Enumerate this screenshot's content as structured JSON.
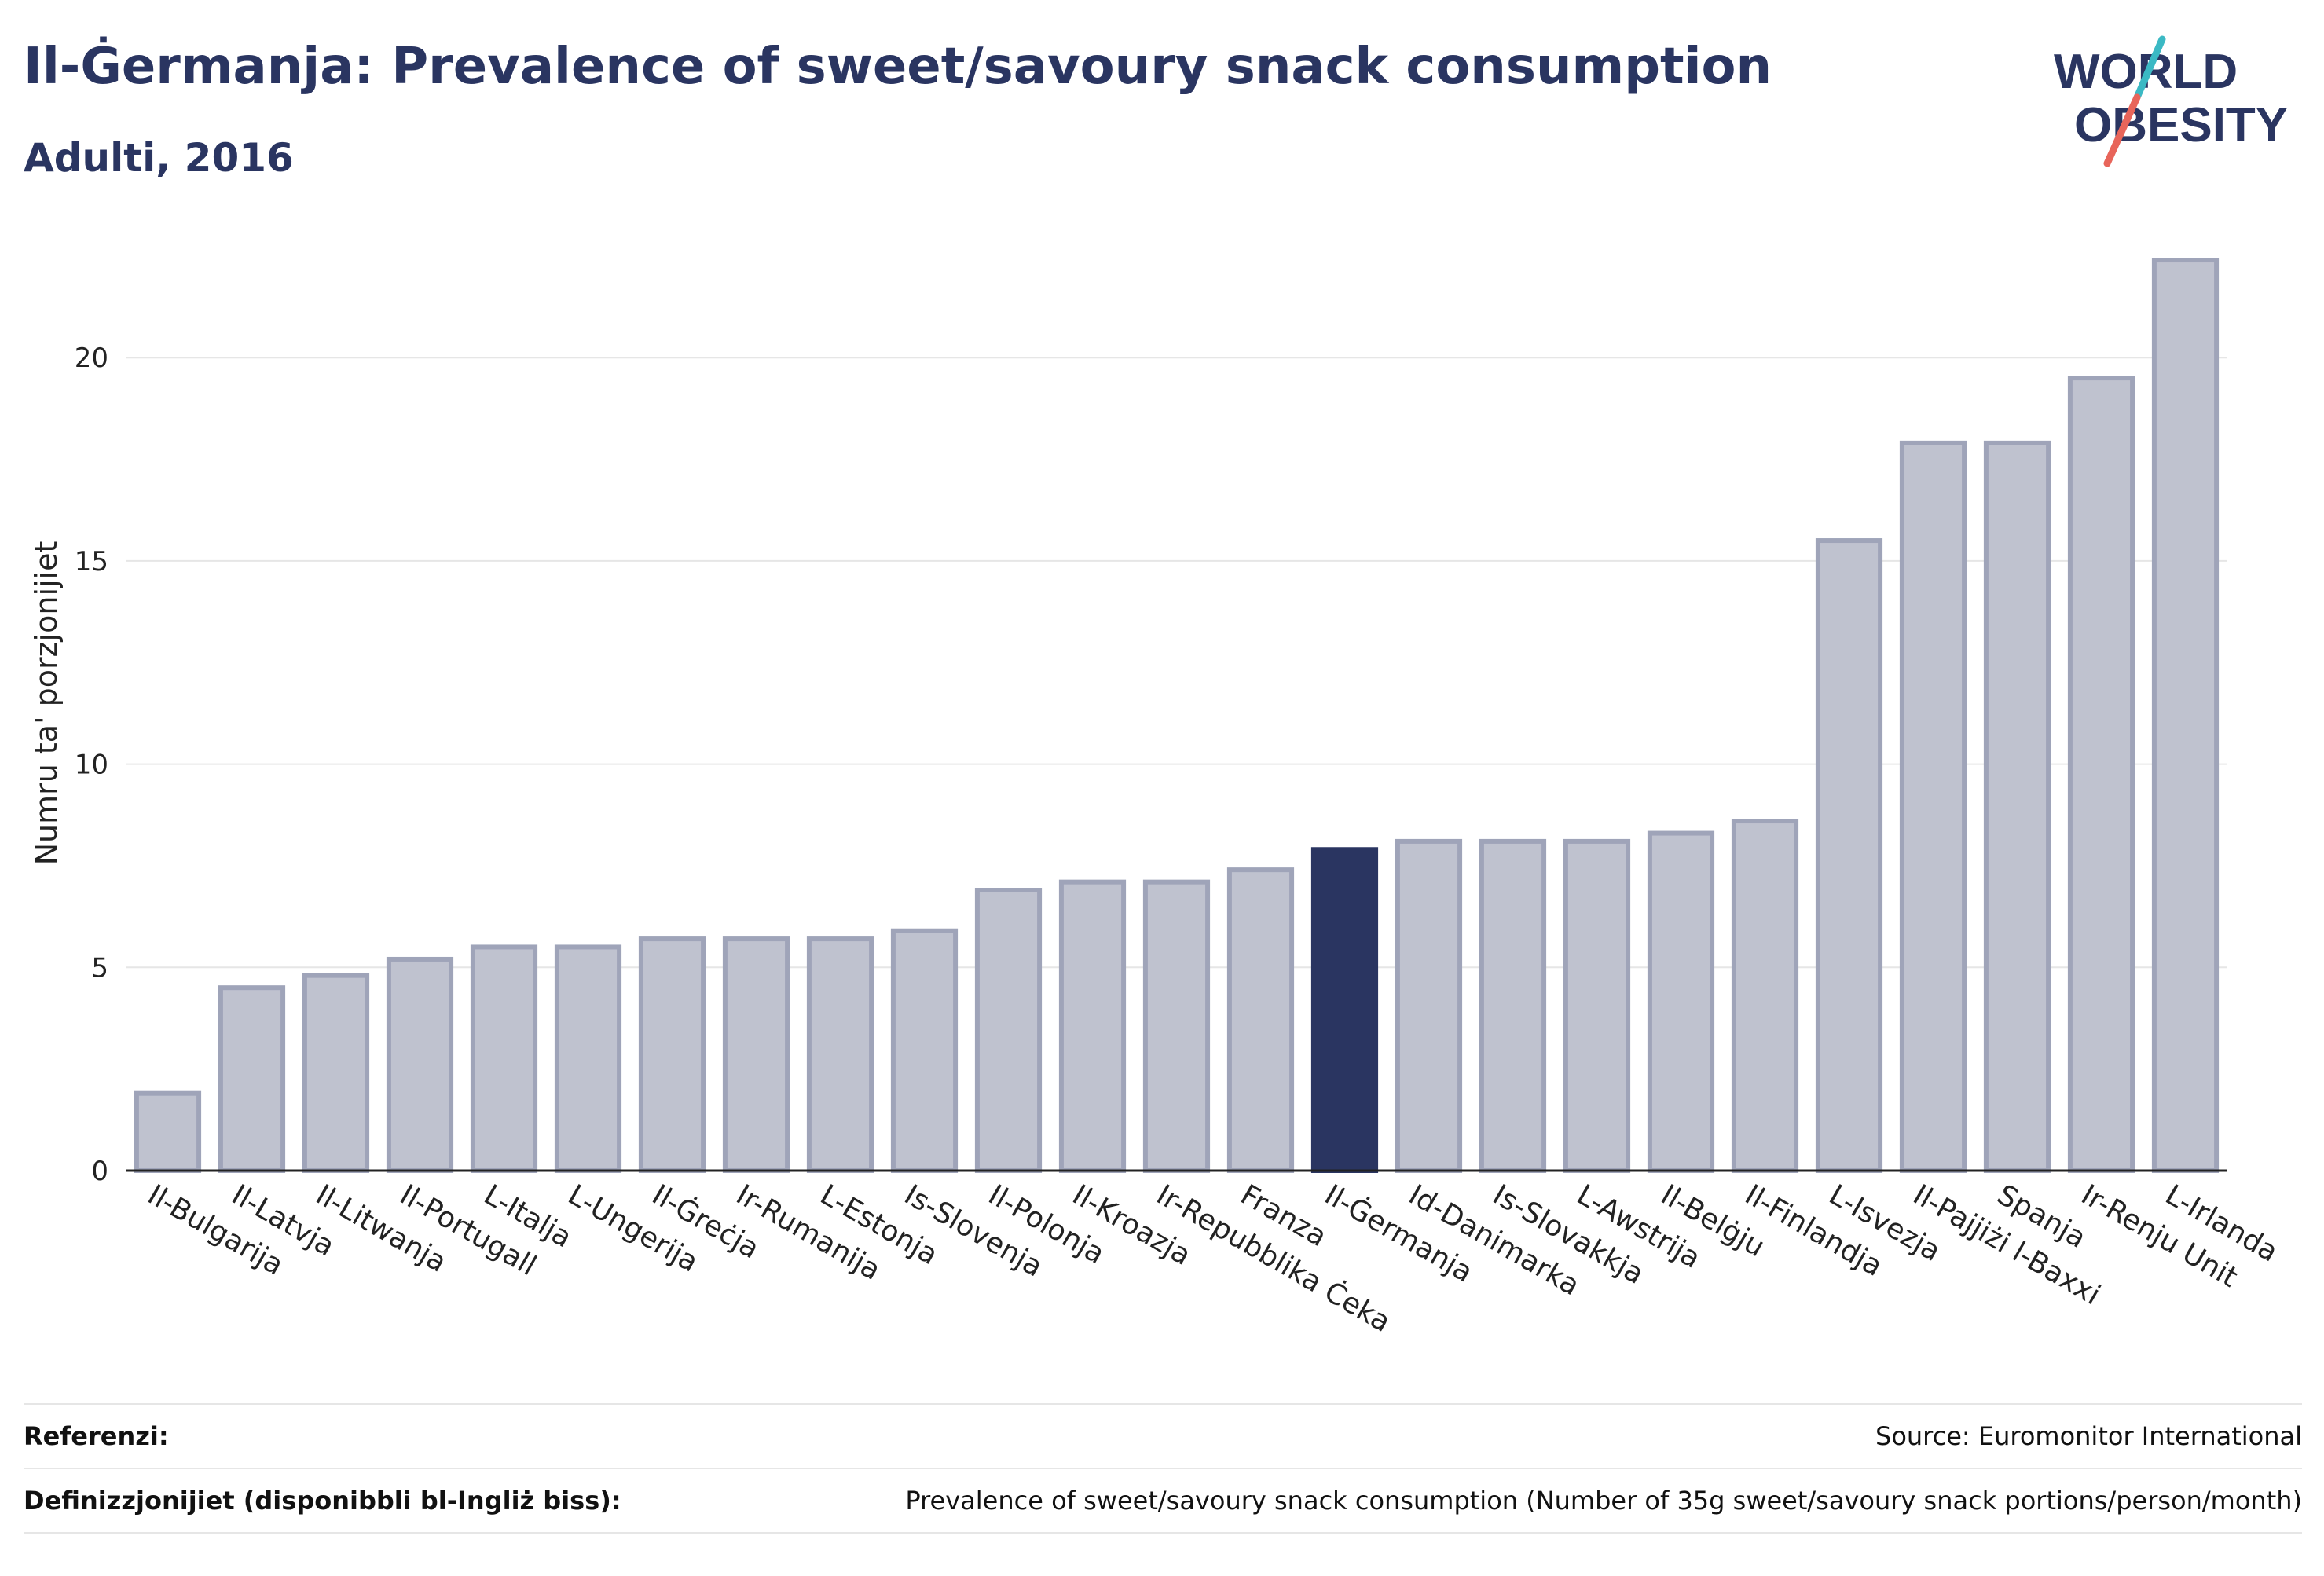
{
  "header": {
    "title": "Il-Ġermanja: Prevalence of sweet/savoury snack consumption",
    "subtitle": "Adulti, 2016"
  },
  "logo": {
    "line1": "WORLD",
    "line2": "OBESITY",
    "colors": {
      "text": "#2a3561",
      "slash_top": "#3bb9c4",
      "slash_bottom": "#e8655a"
    }
  },
  "chart_data": {
    "type": "bar",
    "title": "Il-Ġermanja: Prevalence of sweet/savoury snack consumption",
    "subtitle": "Adulti, 2016",
    "ylabel": "Numru ta' porzjonijiet",
    "xlabel": "",
    "ylim": [
      0,
      23
    ],
    "yticks": [
      0,
      5,
      10,
      15,
      20
    ],
    "grid": true,
    "highlight": "Il-Ġermanja",
    "colors": {
      "bar": "#bfc2cf",
      "bar_edge": "#9fa4b9",
      "highlight": "#2a3561",
      "grid": "#e6e6e6",
      "axis": "#222222"
    },
    "categories": [
      "Il-Bulgarija",
      "Il-Latvja",
      "Il-Litwanja",
      "Il-Portugall",
      "L-Italja",
      "L-Ungerija",
      "Il-Ġreċja",
      "Ir-Rumanija",
      "L-Estonja",
      "Is-Slovenja",
      "Il-Polonja",
      "Il-Kroazja",
      "Ir-Repubblika Ċeka",
      "Franza",
      "Il-Ġermanja",
      "Id-Danimarka",
      "Is-Slovakkja",
      "L-Awstrija",
      "Il-Belġju",
      "Il-Finlandja",
      "L-Isvezja",
      "Il-Pajjiżi l-Baxxi",
      "Spanja",
      "Ir-Renju Unit",
      "L-Irlanda"
    ],
    "values": [
      1.9,
      4.5,
      4.8,
      5.2,
      5.5,
      5.5,
      5.7,
      5.7,
      5.7,
      5.9,
      6.9,
      7.1,
      7.1,
      7.4,
      7.9,
      8.1,
      8.1,
      8.1,
      8.3,
      8.6,
      15.5,
      17.9,
      17.9,
      19.5,
      22.4
    ]
  },
  "footer": {
    "references_label": "Referenzi:",
    "references_value": "Source: Euromonitor International",
    "definitions_label": "Definizzjonijiet (disponibbli bl-Ingliż biss):",
    "definitions_value": "Prevalence of sweet/savoury snack consumption (Number of 35g sweet/savoury snack portions/person/month)"
  }
}
